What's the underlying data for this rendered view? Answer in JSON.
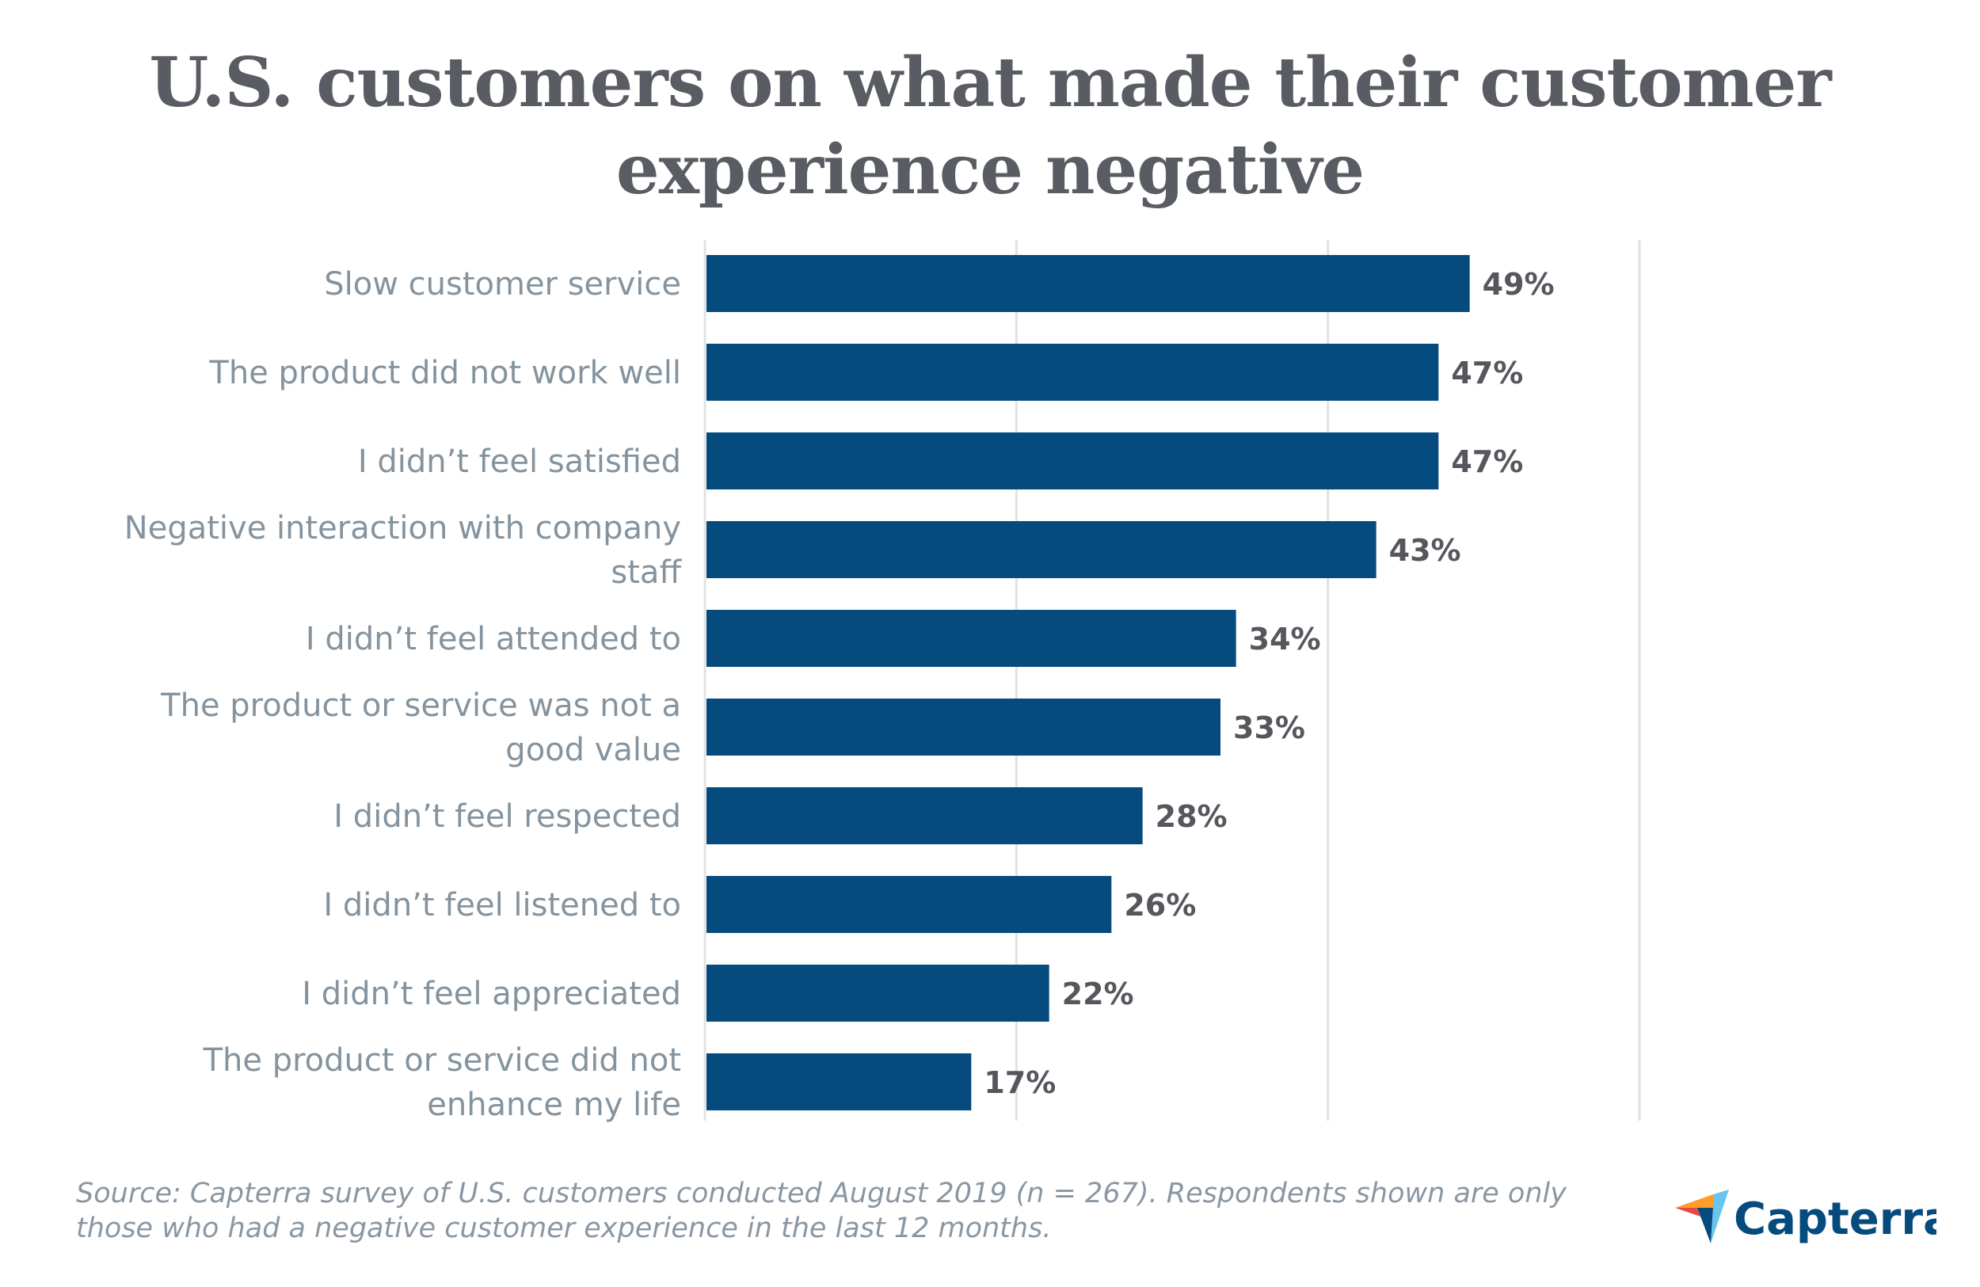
{
  "chart_data": {
    "type": "bar",
    "orientation": "horizontal",
    "title": "U.S. customers on what made their customer experience negative",
    "categories": [
      "Slow customer service",
      "The product did not work well",
      "I didn’t feel satisfied",
      "Negative interaction with company staff",
      "I didn’t feel attended to",
      "The product or service was not a good value",
      "I didn’t feel respected",
      "I didn’t feel listened to",
      "I didn’t feel appreciated",
      "The product or service did not enhance my life"
    ],
    "values": [
      49,
      47,
      47,
      43,
      34,
      33,
      28,
      26,
      22,
      17
    ],
    "data_labels": [
      "49%",
      "47%",
      "47%",
      "43%",
      "34%",
      "33%",
      "28%",
      "26%",
      "22%",
      "17%"
    ],
    "xlim": [
      0,
      60
    ],
    "gridlines": [
      0,
      20,
      40,
      60
    ],
    "grid": true,
    "tick_labels_shown": false,
    "bar_color": "#064b7e"
  },
  "title_lines": [
    "U.S. customers on what made their customer",
    "experience negative"
  ],
  "source": "Source: Capterra survey of U.S. customers conducted August 2019 (n = 267). Respondents shown are only those who had a negative customer experience in the last 12 months.",
  "logo": {
    "text": "Capterra",
    "color": "#064b7e"
  }
}
